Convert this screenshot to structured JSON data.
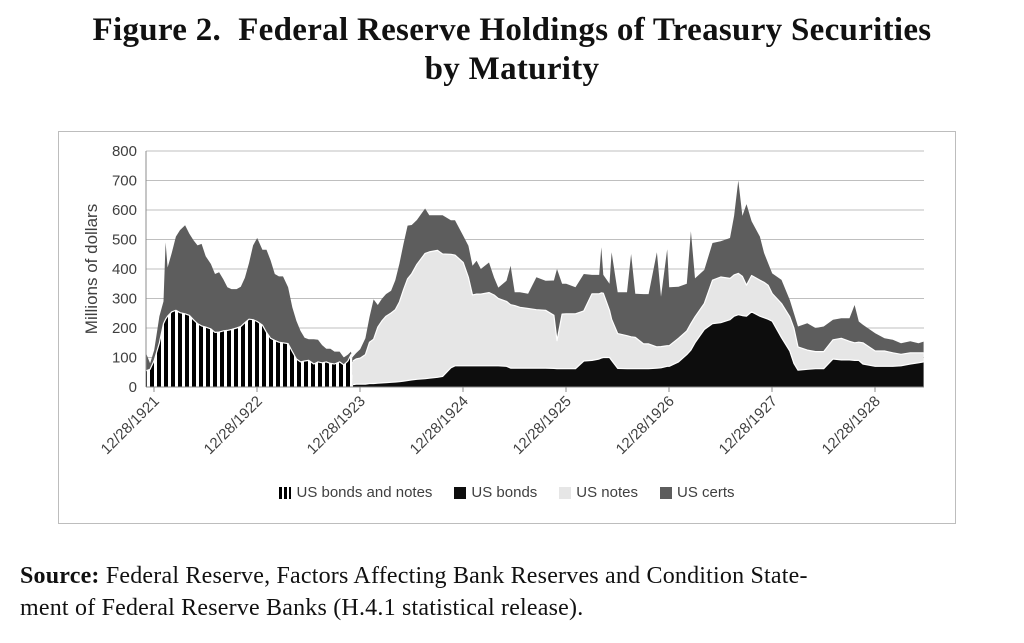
{
  "title": {
    "line1": "Figure 2.  Federal Reserve Holdings of Treasury Securities",
    "line2": "by Maturity"
  },
  "source": {
    "label": "Source:",
    "line1": " Federal Reserve, Factors Affecting Bank Reserves and Condition State-",
    "line2": "ment of Federal Reserve Banks (H.4.1 statistical release)."
  },
  "colors": {
    "bonds": "#0d0d0d",
    "notes": "#e6e6e6",
    "certs": "#5d5d5d",
    "hatch_fg": "#000000",
    "hatch_bg": "#ffffff",
    "grid": "#bfbfbf",
    "axis": "#8c8c8c",
    "chart_text": "#3f3f3f",
    "text": "#111111",
    "border": "#bdbdbd"
  },
  "chart_data": {
    "type": "area",
    "stacked": true,
    "title": "Federal Reserve Holdings of Treasury Securities by Maturity",
    "xlabel": "",
    "ylabel": "Millions of dollars",
    "ylim": [
      0,
      800
    ],
    "ytick_step": 100,
    "ytick_labels": [
      "0",
      "100",
      "200",
      "300",
      "400",
      "500",
      "600",
      "700",
      "800"
    ],
    "xtick_labels": [
      "12/28/1921",
      "12/28/1922",
      "12/28/1923",
      "12/28/1924",
      "12/28/1925",
      "12/28/1926",
      "12/28/1927",
      "12/28/1928"
    ],
    "grid": true,
    "legend_position": "bottom",
    "legend": [
      {
        "label": "US bonds and notes",
        "swatch": "hatch"
      },
      {
        "label": "US bonds",
        "swatch": "bonds"
      },
      {
        "label": "US notes",
        "swatch": "notes"
      },
      {
        "label": "US certs",
        "swatch": "certs"
      }
    ],
    "x_years": [
      0,
      0.04,
      0.08,
      0.13,
      0.17,
      0.19,
      0.21,
      0.25,
      0.29,
      0.33,
      0.38,
      0.42,
      0.46,
      0.5,
      0.54,
      0.58,
      0.63,
      0.67,
      0.71,
      0.75,
      0.79,
      0.83,
      0.88,
      0.92,
      0.96,
      1,
      1.04,
      1.08,
      1.13,
      1.17,
      1.21,
      1.25,
      1.29,
      1.33,
      1.38,
      1.42,
      1.46,
      1.5,
      1.54,
      1.58,
      1.63,
      1.67,
      1.71,
      1.75,
      1.79,
      1.83,
      1.88,
      1.92,
      1.96,
      1.99,
      2,
      2.01,
      2.04,
      2.08,
      2.13,
      2.17,
      2.21,
      2.25,
      2.29,
      2.33,
      2.38,
      2.42,
      2.46,
      2.5,
      2.54,
      2.58,
      2.63,
      2.71,
      2.75,
      2.83,
      2.88,
      2.96,
      3,
      3.08,
      3.13,
      3.17,
      3.21,
      3.25,
      3.33,
      3.38,
      3.42,
      3.5,
      3.54,
      3.58,
      3.63,
      3.71,
      3.79,
      3.88,
      3.96,
      3.99,
      4.04,
      4.08,
      4.17,
      4.25,
      4.33,
      4.4,
      4.42,
      4.44,
      4.5,
      4.52,
      4.58,
      4.67,
      4.71,
      4.75,
      4.83,
      4.88,
      4.96,
      5,
      5.06,
      5.08,
      5.17,
      5.25,
      5.29,
      5.33,
      5.42,
      5.5,
      5.58,
      5.67,
      5.71,
      5.75,
      5.79,
      5.83,
      5.88,
      5.96,
      6,
      6.04,
      6.08,
      6.17,
      6.25,
      6.29,
      6.33,
      6.42,
      6.5,
      6.58,
      6.67,
      6.75,
      6.83,
      6.88,
      6.92,
      6.96,
      7.08,
      7.17,
      7.25,
      7.33,
      7.42,
      7.5,
      7.55
    ],
    "series": [
      {
        "name": "US bonds and notes",
        "fill": "hatch",
        "edge": true,
        "values": [
          55,
          60,
          90,
          150,
          215,
          230,
          240,
          255,
          260,
          252,
          248,
          243,
          228,
          215,
          207,
          203,
          197,
          185,
          186,
          190,
          192,
          195,
          200,
          205,
          218,
          230,
          228,
          222,
          210,
          185,
          165,
          158,
          152,
          150,
          147,
          120,
          95,
          85,
          88,
          90,
          78,
          85,
          82,
          85,
          80,
          78,
          85,
          75,
          88,
          110,
          80,
          0,
          0,
          0,
          0,
          0,
          0,
          0,
          0,
          0,
          0,
          0,
          0,
          0,
          0,
          0,
          0,
          0,
          0,
          0,
          0,
          0,
          0,
          0,
          0,
          0,
          0,
          0,
          0,
          0,
          0,
          0,
          0,
          0,
          0,
          0,
          0,
          0,
          0,
          0,
          0,
          0,
          0,
          0,
          0,
          0,
          0,
          0,
          0,
          0,
          0,
          0,
          0,
          0,
          0,
          0,
          0,
          0,
          0,
          0,
          0,
          0,
          0,
          0,
          0,
          0,
          0,
          0,
          0,
          0,
          0,
          0,
          0,
          0,
          0,
          0,
          0,
          0,
          0,
          0,
          0,
          0,
          0,
          0,
          0,
          0,
          0,
          0,
          0,
          0,
          0,
          0,
          0,
          0,
          0,
          0,
          0
        ]
      },
      {
        "name": "US bonds",
        "fill": "bonds",
        "edge": true,
        "values": [
          0,
          0,
          0,
          0,
          0,
          0,
          0,
          0,
          0,
          0,
          0,
          0,
          0,
          0,
          0,
          0,
          0,
          0,
          0,
          0,
          0,
          0,
          0,
          0,
          0,
          0,
          0,
          0,
          0,
          0,
          0,
          0,
          0,
          0,
          0,
          0,
          0,
          0,
          0,
          0,
          0,
          0,
          0,
          0,
          0,
          0,
          0,
          0,
          0,
          0,
          0,
          8,
          10,
          10,
          10,
          12,
          12,
          13,
          14,
          15,
          16,
          17,
          18,
          20,
          22,
          24,
          26,
          28,
          30,
          33,
          36,
          65,
          72,
          72,
          72,
          72,
          72,
          72,
          72,
          72,
          72,
          70,
          64,
          64,
          64,
          64,
          64,
          64,
          63,
          62,
          62,
          62,
          62,
          88,
          90,
          95,
          98,
          100,
          100,
          90,
          63,
          62,
          62,
          62,
          62,
          62,
          64,
          65,
          70,
          70,
          85,
          110,
          125,
          150,
          195,
          215,
          218,
          228,
          240,
          245,
          242,
          240,
          255,
          240,
          235,
          230,
          223,
          167,
          122,
          80,
          57,
          60,
          62,
          62,
          95,
          92,
          92,
          90,
          90,
          78,
          70,
          70,
          70,
          72,
          78,
          82,
          85
        ]
      },
      {
        "name": "US notes",
        "fill": "notes",
        "edge": true,
        "values": [
          0,
          0,
          0,
          0,
          0,
          0,
          0,
          0,
          0,
          0,
          0,
          0,
          0,
          0,
          0,
          0,
          0,
          0,
          0,
          0,
          0,
          0,
          0,
          0,
          0,
          0,
          0,
          0,
          0,
          0,
          0,
          0,
          0,
          0,
          0,
          0,
          0,
          0,
          0,
          0,
          0,
          0,
          0,
          0,
          0,
          0,
          0,
          0,
          0,
          0,
          0,
          80,
          85,
          88,
          100,
          140,
          150,
          190,
          210,
          225,
          235,
          245,
          270,
          310,
          345,
          360,
          390,
          425,
          428,
          430,
          415,
          385,
          375,
          350,
          300,
          240,
          243,
          243,
          248,
          240,
          228,
          220,
          215,
          212,
          206,
          202,
          198,
          196,
          180,
          95,
          185,
          186,
          186,
          170,
          226,
          221,
          221,
          218,
          160,
          140,
          118,
          112,
          108,
          106,
          84,
          84,
          72,
          72,
          70,
          70,
          80,
          80,
          90,
          88,
          88,
          147,
          155,
          140,
          140,
          140,
          133,
          105,
          123,
          122,
          120,
          115,
          94,
          116,
          116,
          120,
          79,
          65,
          58,
          58,
          65,
          73,
          63,
          60,
          62,
          72,
          52,
          52,
          46,
          39,
          38,
          34,
          31
        ]
      },
      {
        "name": "US certs",
        "fill": "certs",
        "edge": false,
        "values": [
          60,
          20,
          35,
          90,
          75,
          260,
          165,
          200,
          250,
          280,
          300,
          277,
          270,
          265,
          278,
          240,
          220,
          198,
          203,
          175,
          146,
          137,
          132,
          135,
          152,
          190,
          252,
          283,
          255,
          280,
          264,
          225,
          223,
          225,
          191,
          150,
          129,
          105,
          79,
          72,
          84,
          75,
          60,
          45,
          50,
          42,
          35,
          25,
          22,
          10,
          15,
          15,
          20,
          30,
          55,
          85,
          135,
          75,
          75,
          75,
          75,
          100,
          130,
          155,
          180,
          165,
          150,
          152,
          124,
          119,
          131,
          115,
          118,
          91,
          107,
          99,
          113,
          85,
          102,
          59,
          37,
          70,
          132,
          45,
          51,
          50,
          110,
          100,
          118,
          243,
          103,
          102,
          90,
          125,
          64,
          64,
          155,
          62,
          90,
          227,
          140,
          147,
          281,
          148,
          169,
          169,
          321,
          169,
          327,
          198,
          175,
          160,
          313,
          130,
          114,
          126,
          121,
          137,
          200,
          315,
          205,
          275,
          184,
          148,
          100,
          75,
          68,
          80,
          57,
          50,
          69,
          91,
          80,
          85,
          68,
          68,
          78,
          128,
          70,
          61,
          60,
          43,
          44,
          37,
          39,
          32,
          38
        ]
      }
    ]
  }
}
